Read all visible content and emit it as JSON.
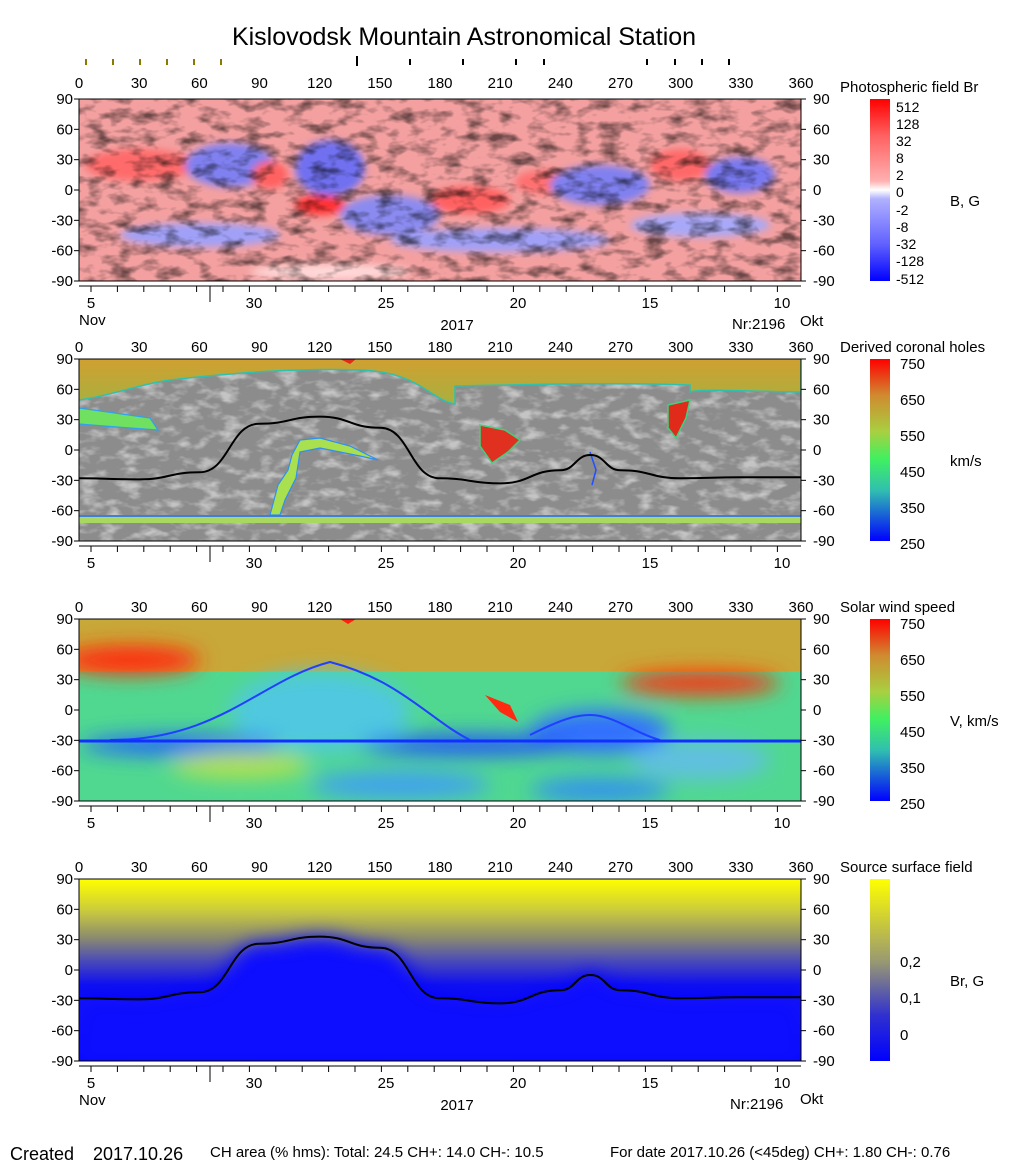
{
  "title": "Kislovodsk Mountain Astronomical Station",
  "lon_ticks": [
    "0",
    "30",
    "60",
    "90",
    "120",
    "150",
    "180",
    "210",
    "240",
    "270",
    "300",
    "330",
    "360"
  ],
  "lat_ticks": [
    "90",
    "60",
    "30",
    "0",
    "-30",
    "-60",
    "-90"
  ],
  "date_ticks": [
    "5",
    "30",
    "25",
    "20",
    "15",
    "10"
  ],
  "date_axis": {
    "month_left": "Nov",
    "month_right": "Okt",
    "year": "2017",
    "rotation": "Nr:2196"
  },
  "panels": [
    {
      "id": "photospheric",
      "title": "Photospheric field Br",
      "unit": "B, G",
      "colorbar_labels": [
        "512",
        "128",
        "32",
        "8",
        "2",
        "0",
        "-2",
        "-8",
        "-32",
        "-128",
        "-512"
      ],
      "colors": {
        "positive": "#ff0000",
        "negative": "#0000ff"
      }
    },
    {
      "id": "coronal-holes",
      "title": "Derived coronal holes",
      "unit": "km/s",
      "colorbar_labels": [
        "750",
        "650",
        "550",
        "450",
        "350",
        "250"
      ]
    },
    {
      "id": "solar-wind",
      "title": "Solar wind speed",
      "unit": "V, km/s",
      "colorbar_labels": [
        "750",
        "650",
        "550",
        "450",
        "350",
        "250"
      ]
    },
    {
      "id": "source-surface",
      "title": "Source surface field",
      "unit": "Br, G",
      "colorbar_labels": [
        "0,2",
        "0,1",
        "0"
      ],
      "colors": {
        "high": "#ffff00",
        "low": "#0000ff"
      }
    }
  ],
  "footer": {
    "created_label": "Created",
    "created_date": "2017.10.26",
    "ch_area": "CH area (% hms): Total: 24.5 CH+: 14.0   CH-: 10.5",
    "for_date": "For date 2017.10.26 (<45deg) CH+: 1.80    CH-: 0.76"
  },
  "chart_data": {
    "type": "heatmap",
    "x_range": [
      0,
      360
    ],
    "y_range": [
      -90,
      90
    ],
    "neutral_line": {
      "name": "",
      "x": [
        0,
        30,
        60,
        90,
        120,
        150,
        180,
        210,
        240,
        255,
        270,
        300,
        330,
        360
      ],
      "y": [
        -28,
        -29,
        -22,
        26,
        33,
        22,
        -28,
        -33,
        -20,
        -5,
        -20,
        -28,
        -27,
        -27
      ]
    }
  }
}
